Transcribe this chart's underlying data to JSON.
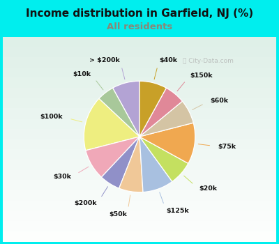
{
  "title": "Income distribution in Garfield, NJ (%)",
  "subtitle": "All residents",
  "bg_color": "#00EEEE",
  "panel_color_top": "#e8f5f0",
  "panel_color_bottom": "#d0eedc",
  "subtitle_color": "#888877",
  "labels": [
    "> $200k",
    "$10k",
    "$100k",
    "$30k",
    "$200k",
    "$50k",
    "$125k",
    "$20k",
    "$75k",
    "$60k",
    "$150k",
    "$40k"
  ],
  "sizes": [
    8,
    5,
    16,
    9,
    6,
    7,
    9,
    7,
    12,
    7,
    6,
    8
  ],
  "colors": [
    "#b3a3d4",
    "#a8c89a",
    "#eeee80",
    "#f0a8b8",
    "#9090c8",
    "#f0c898",
    "#a8c0e0",
    "#c4e060",
    "#f0a850",
    "#d4c4a4",
    "#e08898",
    "#c8a028"
  ],
  "start_angle": 90,
  "watermark": "City-Data.com"
}
